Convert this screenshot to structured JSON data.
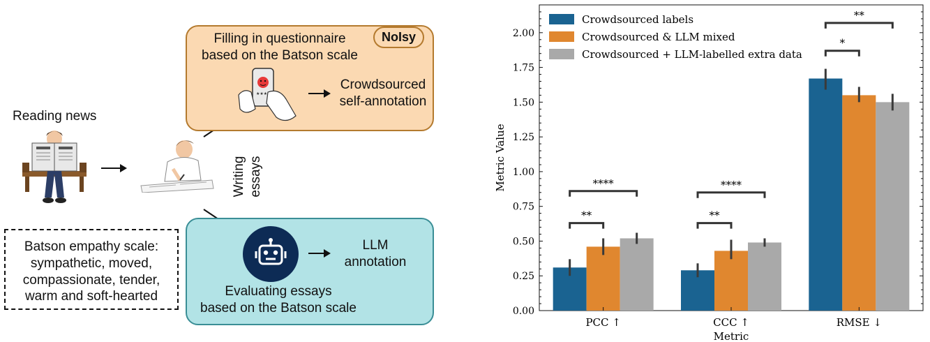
{
  "diagram": {
    "reading_news": "Reading news",
    "writing_essays_line1": "Writing",
    "writing_essays_line2": "essays",
    "questionnaire_line1": "Filling in questionnaire",
    "questionnaire_line2": "based on the Batson scale",
    "noisy_badge": "NoIsy",
    "crowd_line1": "Crowdsourced",
    "crowd_line2": "self-annotation",
    "llm_line1": "LLM",
    "llm_line2": "annotation",
    "evaluating_line1": "Evaluating essays",
    "evaluating_line2": "based on the Batson scale",
    "batson_line1": "Batson empathy scale:",
    "batson_line2": "sympathetic, moved,",
    "batson_line3": "compassionate, tender,",
    "batson_line4": "warm and soft-hearted",
    "colors": {
      "orange_box": "#fbd9b2",
      "teal_box": "#b2e3e6",
      "robot": "#0d2b55"
    },
    "icons": [
      "newspaper-reader-icon",
      "writing-person-icon",
      "phone-rating-icon",
      "robot-icon"
    ]
  },
  "chart_data": {
    "type": "bar",
    "title": "",
    "xlabel": "Metric",
    "ylabel": "Metric Value",
    "ylim": [
      0,
      2.2
    ],
    "yticks": [
      "0.00",
      "0.25",
      "0.50",
      "0.75",
      "1.00",
      "1.25",
      "1.50",
      "1.75",
      "2.00"
    ],
    "categories": [
      "PCC ↑",
      "CCC ↑",
      "RMSE ↓"
    ],
    "legend_position": "top-left",
    "grid": false,
    "series": [
      {
        "name": "Crowdsourced labels",
        "color": "#1a6391",
        "values": [
          0.31,
          0.29,
          1.67
        ],
        "err_low": [
          0.25,
          0.24,
          1.59
        ],
        "err_high": [
          0.37,
          0.34,
          1.74
        ]
      },
      {
        "name": "Crowdsourced & LLM mixed",
        "color": "#e0872f",
        "values": [
          0.46,
          0.43,
          1.55
        ],
        "err_low": [
          0.4,
          0.37,
          1.5
        ],
        "err_high": [
          0.52,
          0.51,
          1.61
        ]
      },
      {
        "name": "Crowdsourced + LLM-labelled extra data",
        "color": "#a9a9a9",
        "values": [
          0.52,
          0.49,
          1.5
        ],
        "err_low": [
          0.48,
          0.46,
          1.44
        ],
        "err_high": [
          0.56,
          0.52,
          1.56
        ]
      }
    ],
    "significance": [
      {
        "category": 0,
        "from_series": 0,
        "to_series": 1,
        "level": 0.63,
        "label": "**"
      },
      {
        "category": 0,
        "from_series": 0,
        "to_series": 2,
        "level": 0.86,
        "label": "****"
      },
      {
        "category": 1,
        "from_series": 0,
        "to_series": 1,
        "level": 0.63,
        "label": "**"
      },
      {
        "category": 1,
        "from_series": 0,
        "to_series": 2,
        "level": 0.85,
        "label": "****"
      },
      {
        "category": 2,
        "from_series": 0,
        "to_series": 1,
        "level": 1.87,
        "label": "*"
      },
      {
        "category": 2,
        "from_series": 0,
        "to_series": 2,
        "level": 2.07,
        "label": "**"
      }
    ]
  }
}
